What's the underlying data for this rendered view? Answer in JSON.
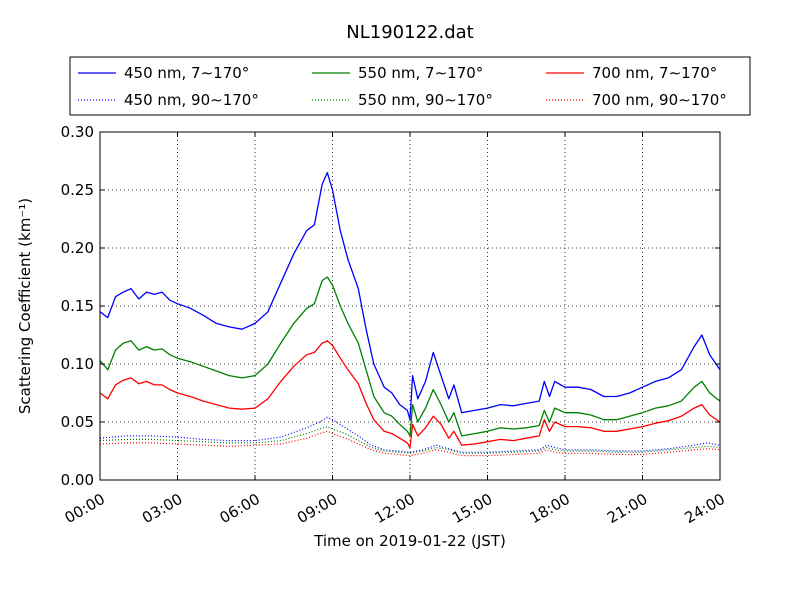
{
  "chart_data": {
    "type": "line",
    "title": "NL190122.dat",
    "xlabel": "Time on 2019-01-22 (JST)",
    "ylabel": "Scattering Coefficient (km⁻¹)",
    "x_unit": "hours",
    "xlim": [
      0,
      24
    ],
    "ylim": [
      0.0,
      0.3
    ],
    "x_ticks": [
      {
        "value": 0,
        "label": "00:00"
      },
      {
        "value": 3,
        "label": "03:00"
      },
      {
        "value": 6,
        "label": "06:00"
      },
      {
        "value": 9,
        "label": "09:00"
      },
      {
        "value": 12,
        "label": "12:00"
      },
      {
        "value": 15,
        "label": "15:00"
      },
      {
        "value": 18,
        "label": "18:00"
      },
      {
        "value": 21,
        "label": "21:00"
      },
      {
        "value": 24,
        "label": "24:00"
      }
    ],
    "y_ticks": [
      {
        "value": 0.0,
        "label": "0.00"
      },
      {
        "value": 0.05,
        "label": "0.05"
      },
      {
        "value": 0.1,
        "label": "0.10"
      },
      {
        "value": 0.15,
        "label": "0.15"
      },
      {
        "value": 0.2,
        "label": "0.20"
      },
      {
        "value": 0.25,
        "label": "0.25"
      },
      {
        "value": 0.3,
        "label": "0.30"
      }
    ],
    "grid": true,
    "legend_position": "top",
    "series": [
      {
        "name": "450 nm, 7∼170°",
        "color": "#0000ff",
        "style": "solid",
        "x": [
          0,
          0.3,
          0.6,
          0.9,
          1.2,
          1.5,
          1.8,
          2.1,
          2.4,
          2.7,
          3.0,
          3.5,
          4.0,
          4.5,
          5.0,
          5.5,
          6.0,
          6.5,
          7.0,
          7.5,
          8.0,
          8.3,
          8.6,
          8.8,
          9.0,
          9.3,
          9.6,
          10.0,
          10.3,
          10.6,
          11.0,
          11.3,
          11.6,
          11.9,
          12.0,
          12.1,
          12.3,
          12.6,
          12.9,
          13.2,
          13.5,
          13.7,
          14.0,
          14.5,
          15.0,
          15.5,
          16.0,
          16.5,
          17.0,
          17.2,
          17.4,
          17.6,
          18.0,
          18.5,
          19.0,
          19.5,
          20.0,
          20.5,
          21.0,
          21.5,
          22.0,
          22.5,
          23.0,
          23.3,
          23.6,
          24.0
        ],
        "y": [
          0.145,
          0.14,
          0.158,
          0.162,
          0.165,
          0.156,
          0.162,
          0.16,
          0.162,
          0.155,
          0.152,
          0.148,
          0.142,
          0.135,
          0.132,
          0.13,
          0.135,
          0.145,
          0.17,
          0.195,
          0.215,
          0.22,
          0.255,
          0.265,
          0.25,
          0.215,
          0.19,
          0.165,
          0.13,
          0.1,
          0.08,
          0.075,
          0.065,
          0.06,
          0.052,
          0.09,
          0.07,
          0.085,
          0.11,
          0.09,
          0.07,
          0.082,
          0.058,
          0.06,
          0.062,
          0.065,
          0.064,
          0.066,
          0.068,
          0.085,
          0.072,
          0.085,
          0.08,
          0.08,
          0.078,
          0.072,
          0.072,
          0.075,
          0.08,
          0.085,
          0.088,
          0.095,
          0.115,
          0.125,
          0.108,
          0.095
        ]
      },
      {
        "name": "550 nm, 7∼170°",
        "color": "#008000",
        "style": "solid",
        "x": [
          0,
          0.3,
          0.6,
          0.9,
          1.2,
          1.5,
          1.8,
          2.1,
          2.4,
          2.7,
          3.0,
          3.5,
          4.0,
          4.5,
          5.0,
          5.5,
          6.0,
          6.5,
          7.0,
          7.5,
          8.0,
          8.3,
          8.6,
          8.8,
          9.0,
          9.3,
          9.6,
          10.0,
          10.3,
          10.6,
          11.0,
          11.3,
          11.6,
          11.9,
          12.0,
          12.1,
          12.3,
          12.6,
          12.9,
          13.2,
          13.5,
          13.7,
          14.0,
          14.5,
          15.0,
          15.5,
          16.0,
          16.5,
          17.0,
          17.2,
          17.4,
          17.6,
          18.0,
          18.5,
          19.0,
          19.5,
          20.0,
          20.5,
          21.0,
          21.5,
          22.0,
          22.5,
          23.0,
          23.3,
          23.6,
          24.0
        ],
        "y": [
          0.103,
          0.095,
          0.112,
          0.118,
          0.12,
          0.112,
          0.115,
          0.112,
          0.113,
          0.108,
          0.105,
          0.102,
          0.098,
          0.094,
          0.09,
          0.088,
          0.09,
          0.1,
          0.118,
          0.135,
          0.148,
          0.152,
          0.172,
          0.175,
          0.168,
          0.15,
          0.135,
          0.118,
          0.095,
          0.072,
          0.058,
          0.055,
          0.048,
          0.042,
          0.038,
          0.065,
          0.05,
          0.062,
          0.078,
          0.065,
          0.05,
          0.058,
          0.038,
          0.04,
          0.042,
          0.045,
          0.044,
          0.045,
          0.047,
          0.06,
          0.05,
          0.062,
          0.058,
          0.058,
          0.056,
          0.052,
          0.052,
          0.055,
          0.058,
          0.062,
          0.064,
          0.068,
          0.08,
          0.085,
          0.075,
          0.068
        ]
      },
      {
        "name": "700 nm, 7∼170°",
        "color": "#ff0000",
        "style": "solid",
        "x": [
          0,
          0.3,
          0.6,
          0.9,
          1.2,
          1.5,
          1.8,
          2.1,
          2.4,
          2.7,
          3.0,
          3.5,
          4.0,
          4.5,
          5.0,
          5.5,
          6.0,
          6.5,
          7.0,
          7.5,
          8.0,
          8.3,
          8.6,
          8.8,
          9.0,
          9.3,
          9.6,
          10.0,
          10.3,
          10.6,
          11.0,
          11.3,
          11.6,
          11.9,
          12.0,
          12.1,
          12.3,
          12.6,
          12.9,
          13.2,
          13.5,
          13.7,
          14.0,
          14.5,
          15.0,
          15.5,
          16.0,
          16.5,
          17.0,
          17.2,
          17.4,
          17.6,
          18.0,
          18.5,
          19.0,
          19.5,
          20.0,
          20.5,
          21.0,
          21.5,
          22.0,
          22.5,
          23.0,
          23.3,
          23.6,
          24.0
        ],
        "y": [
          0.075,
          0.07,
          0.082,
          0.086,
          0.088,
          0.083,
          0.085,
          0.082,
          0.082,
          0.078,
          0.075,
          0.072,
          0.068,
          0.065,
          0.062,
          0.061,
          0.062,
          0.07,
          0.085,
          0.098,
          0.108,
          0.11,
          0.118,
          0.12,
          0.116,
          0.105,
          0.095,
          0.083,
          0.066,
          0.052,
          0.042,
          0.04,
          0.036,
          0.032,
          0.028,
          0.048,
          0.038,
          0.045,
          0.055,
          0.048,
          0.036,
          0.042,
          0.03,
          0.031,
          0.033,
          0.035,
          0.034,
          0.036,
          0.038,
          0.052,
          0.042,
          0.05,
          0.046,
          0.046,
          0.045,
          0.042,
          0.042,
          0.044,
          0.046,
          0.049,
          0.051,
          0.055,
          0.062,
          0.065,
          0.056,
          0.05
        ]
      },
      {
        "name": "450 nm, 90∼170°",
        "color": "#0000ff",
        "style": "dotted",
        "x": [
          0,
          1,
          2,
          3,
          4,
          5,
          6,
          7,
          8,
          8.5,
          8.8,
          9.0,
          9.5,
          10.0,
          10.5,
          11.0,
          11.5,
          12.0,
          12.5,
          13.0,
          13.5,
          14.0,
          15.0,
          16.0,
          17.0,
          17.3,
          17.6,
          18.0,
          19.0,
          20.0,
          21.0,
          22.0,
          23.0,
          23.5,
          24.0
        ],
        "y": [
          0.036,
          0.038,
          0.038,
          0.037,
          0.035,
          0.034,
          0.034,
          0.037,
          0.045,
          0.05,
          0.054,
          0.052,
          0.045,
          0.038,
          0.03,
          0.026,
          0.025,
          0.024,
          0.026,
          0.03,
          0.027,
          0.024,
          0.024,
          0.025,
          0.026,
          0.03,
          0.028,
          0.026,
          0.026,
          0.025,
          0.025,
          0.027,
          0.03,
          0.032,
          0.03
        ]
      },
      {
        "name": "550 nm, 90∼170°",
        "color": "#008000",
        "style": "dotted",
        "x": [
          0,
          1,
          2,
          3,
          4,
          5,
          6,
          7,
          8,
          8.5,
          8.8,
          9.0,
          9.5,
          10.0,
          10.5,
          11.0,
          11.5,
          12.0,
          12.5,
          13.0,
          13.5,
          14.0,
          15.0,
          16.0,
          17.0,
          17.3,
          17.6,
          18.0,
          19.0,
          20.0,
          21.0,
          22.0,
          23.0,
          23.5,
          24.0
        ],
        "y": [
          0.034,
          0.035,
          0.035,
          0.034,
          0.033,
          0.032,
          0.032,
          0.034,
          0.04,
          0.044,
          0.046,
          0.044,
          0.04,
          0.034,
          0.028,
          0.025,
          0.024,
          0.023,
          0.025,
          0.028,
          0.026,
          0.023,
          0.023,
          0.024,
          0.025,
          0.028,
          0.026,
          0.025,
          0.025,
          0.024,
          0.024,
          0.026,
          0.028,
          0.029,
          0.028
        ]
      },
      {
        "name": "700 nm, 90∼170°",
        "color": "#ff0000",
        "style": "dotted",
        "x": [
          0,
          1,
          2,
          3,
          4,
          5,
          6,
          7,
          8,
          8.5,
          8.8,
          9.0,
          9.5,
          10.0,
          10.5,
          11.0,
          11.5,
          12.0,
          12.5,
          13.0,
          13.5,
          14.0,
          15.0,
          16.0,
          17.0,
          17.3,
          17.6,
          18.0,
          19.0,
          20.0,
          21.0,
          22.0,
          23.0,
          23.5,
          24.0
        ],
        "y": [
          0.031,
          0.032,
          0.032,
          0.031,
          0.03,
          0.029,
          0.03,
          0.031,
          0.036,
          0.04,
          0.042,
          0.04,
          0.036,
          0.031,
          0.026,
          0.023,
          0.022,
          0.021,
          0.023,
          0.026,
          0.024,
          0.021,
          0.021,
          0.022,
          0.023,
          0.026,
          0.024,
          0.023,
          0.023,
          0.022,
          0.022,
          0.024,
          0.026,
          0.027,
          0.026
        ]
      }
    ]
  }
}
